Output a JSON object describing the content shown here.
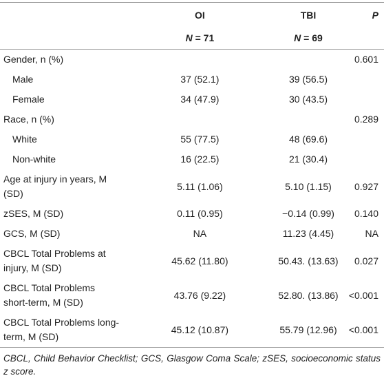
{
  "table": {
    "header": {
      "columns": [
        "OI",
        "TBI",
        "P"
      ],
      "n": [
        {
          "symbol": "N",
          "value": "= 71"
        },
        {
          "symbol": "N",
          "value": "= 69"
        }
      ]
    },
    "sections": [
      {
        "label": "Gender, n (%)",
        "oi": "",
        "tbi": "",
        "p": "0.601",
        "items": [
          {
            "label": "Male",
            "oi": "37 (52.1)",
            "tbi": "39 (56.5)",
            "p": ""
          },
          {
            "label": "Female",
            "oi": "34 (47.9)",
            "tbi": "30 (43.5)",
            "p": ""
          }
        ]
      },
      {
        "label": "Race, n (%)",
        "oi": "",
        "tbi": "",
        "p": "0.289",
        "items": [
          {
            "label": "White",
            "oi": "55 (77.5)",
            "tbi": "48 (69.6)",
            "p": ""
          },
          {
            "label": "Non-white",
            "oi": "16 (22.5)",
            "tbi": "21 (30.4)",
            "p": ""
          }
        ]
      },
      {
        "label": "Age at injury in years, M (SD)",
        "oi": "5.11 (1.06)",
        "tbi": "5.10 (1.15)",
        "p": "0.927",
        "items": []
      },
      {
        "label": "zSES, M (SD)",
        "oi": "0.11 (0.95)",
        "tbi": "−0.14 (0.99)",
        "p": "0.140",
        "items": []
      },
      {
        "label": "GCS, M (SD)",
        "oi": "NA",
        "tbi": "11.23 (4.45)",
        "p": "NA",
        "items": []
      },
      {
        "label": "CBCL Total Problems at injury, M (SD)",
        "oi": "45.62 (11.80)",
        "tbi": "50.43. (13.63)",
        "p": "0.027",
        "items": []
      },
      {
        "label": "CBCL Total Problems short-term, M (SD)",
        "oi": "43.76 (9.22)",
        "tbi": "52.80. (13.86)",
        "p": "<0.001",
        "items": []
      },
      {
        "label": "CBCL Total Problems long-term, M (SD)",
        "oi": "45.12 (10.87)",
        "tbi": "55.79 (12.96)",
        "p": "<0.001",
        "items": []
      }
    ],
    "footnote": "CBCL, Child Behavior Checklist; GCS, Glasgow Coma Scale; zSES, socioeconomic status z score."
  }
}
